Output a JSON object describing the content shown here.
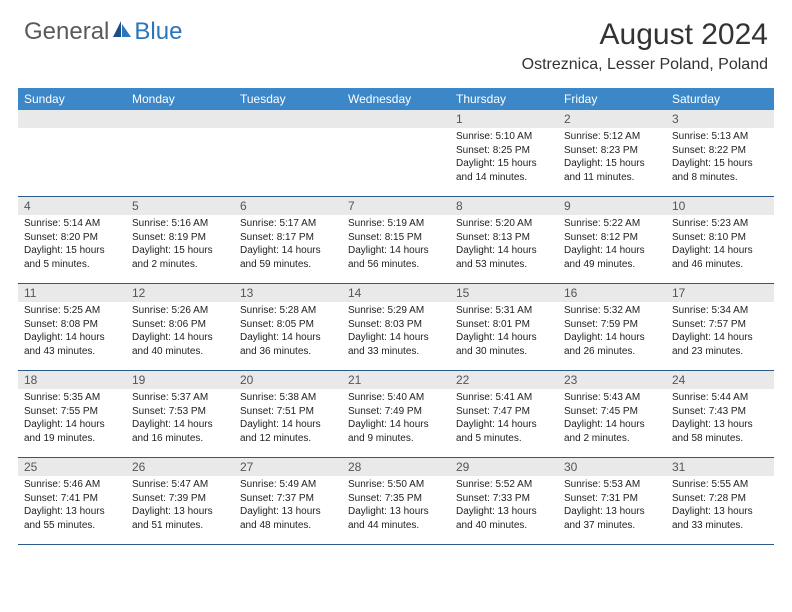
{
  "brand": {
    "part1": "General",
    "part2": "Blue"
  },
  "title": "August 2024",
  "location": "Ostreznica, Lesser Poland, Poland",
  "colors": {
    "header_bg": "#3b87c8",
    "header_text": "#ffffff",
    "daynum_bg": "#e9e9e9",
    "row_border": "#2a5a8a",
    "accent": "#2a75bb"
  },
  "day_labels": [
    "Sunday",
    "Monday",
    "Tuesday",
    "Wednesday",
    "Thursday",
    "Friday",
    "Saturday"
  ],
  "weeks": [
    [
      {
        "n": "",
        "sr": "",
        "ss": "",
        "dl": ""
      },
      {
        "n": "",
        "sr": "",
        "ss": "",
        "dl": ""
      },
      {
        "n": "",
        "sr": "",
        "ss": "",
        "dl": ""
      },
      {
        "n": "",
        "sr": "",
        "ss": "",
        "dl": ""
      },
      {
        "n": "1",
        "sr": "Sunrise: 5:10 AM",
        "ss": "Sunset: 8:25 PM",
        "dl": "Daylight: 15 hours and 14 minutes."
      },
      {
        "n": "2",
        "sr": "Sunrise: 5:12 AM",
        "ss": "Sunset: 8:23 PM",
        "dl": "Daylight: 15 hours and 11 minutes."
      },
      {
        "n": "3",
        "sr": "Sunrise: 5:13 AM",
        "ss": "Sunset: 8:22 PM",
        "dl": "Daylight: 15 hours and 8 minutes."
      }
    ],
    [
      {
        "n": "4",
        "sr": "Sunrise: 5:14 AM",
        "ss": "Sunset: 8:20 PM",
        "dl": "Daylight: 15 hours and 5 minutes."
      },
      {
        "n": "5",
        "sr": "Sunrise: 5:16 AM",
        "ss": "Sunset: 8:19 PM",
        "dl": "Daylight: 15 hours and 2 minutes."
      },
      {
        "n": "6",
        "sr": "Sunrise: 5:17 AM",
        "ss": "Sunset: 8:17 PM",
        "dl": "Daylight: 14 hours and 59 minutes."
      },
      {
        "n": "7",
        "sr": "Sunrise: 5:19 AM",
        "ss": "Sunset: 8:15 PM",
        "dl": "Daylight: 14 hours and 56 minutes."
      },
      {
        "n": "8",
        "sr": "Sunrise: 5:20 AM",
        "ss": "Sunset: 8:13 PM",
        "dl": "Daylight: 14 hours and 53 minutes."
      },
      {
        "n": "9",
        "sr": "Sunrise: 5:22 AM",
        "ss": "Sunset: 8:12 PM",
        "dl": "Daylight: 14 hours and 49 minutes."
      },
      {
        "n": "10",
        "sr": "Sunrise: 5:23 AM",
        "ss": "Sunset: 8:10 PM",
        "dl": "Daylight: 14 hours and 46 minutes."
      }
    ],
    [
      {
        "n": "11",
        "sr": "Sunrise: 5:25 AM",
        "ss": "Sunset: 8:08 PM",
        "dl": "Daylight: 14 hours and 43 minutes."
      },
      {
        "n": "12",
        "sr": "Sunrise: 5:26 AM",
        "ss": "Sunset: 8:06 PM",
        "dl": "Daylight: 14 hours and 40 minutes."
      },
      {
        "n": "13",
        "sr": "Sunrise: 5:28 AM",
        "ss": "Sunset: 8:05 PM",
        "dl": "Daylight: 14 hours and 36 minutes."
      },
      {
        "n": "14",
        "sr": "Sunrise: 5:29 AM",
        "ss": "Sunset: 8:03 PM",
        "dl": "Daylight: 14 hours and 33 minutes."
      },
      {
        "n": "15",
        "sr": "Sunrise: 5:31 AM",
        "ss": "Sunset: 8:01 PM",
        "dl": "Daylight: 14 hours and 30 minutes."
      },
      {
        "n": "16",
        "sr": "Sunrise: 5:32 AM",
        "ss": "Sunset: 7:59 PM",
        "dl": "Daylight: 14 hours and 26 minutes."
      },
      {
        "n": "17",
        "sr": "Sunrise: 5:34 AM",
        "ss": "Sunset: 7:57 PM",
        "dl": "Daylight: 14 hours and 23 minutes."
      }
    ],
    [
      {
        "n": "18",
        "sr": "Sunrise: 5:35 AM",
        "ss": "Sunset: 7:55 PM",
        "dl": "Daylight: 14 hours and 19 minutes."
      },
      {
        "n": "19",
        "sr": "Sunrise: 5:37 AM",
        "ss": "Sunset: 7:53 PM",
        "dl": "Daylight: 14 hours and 16 minutes."
      },
      {
        "n": "20",
        "sr": "Sunrise: 5:38 AM",
        "ss": "Sunset: 7:51 PM",
        "dl": "Daylight: 14 hours and 12 minutes."
      },
      {
        "n": "21",
        "sr": "Sunrise: 5:40 AM",
        "ss": "Sunset: 7:49 PM",
        "dl": "Daylight: 14 hours and 9 minutes."
      },
      {
        "n": "22",
        "sr": "Sunrise: 5:41 AM",
        "ss": "Sunset: 7:47 PM",
        "dl": "Daylight: 14 hours and 5 minutes."
      },
      {
        "n": "23",
        "sr": "Sunrise: 5:43 AM",
        "ss": "Sunset: 7:45 PM",
        "dl": "Daylight: 14 hours and 2 minutes."
      },
      {
        "n": "24",
        "sr": "Sunrise: 5:44 AM",
        "ss": "Sunset: 7:43 PM",
        "dl": "Daylight: 13 hours and 58 minutes."
      }
    ],
    [
      {
        "n": "25",
        "sr": "Sunrise: 5:46 AM",
        "ss": "Sunset: 7:41 PM",
        "dl": "Daylight: 13 hours and 55 minutes."
      },
      {
        "n": "26",
        "sr": "Sunrise: 5:47 AM",
        "ss": "Sunset: 7:39 PM",
        "dl": "Daylight: 13 hours and 51 minutes."
      },
      {
        "n": "27",
        "sr": "Sunrise: 5:49 AM",
        "ss": "Sunset: 7:37 PM",
        "dl": "Daylight: 13 hours and 48 minutes."
      },
      {
        "n": "28",
        "sr": "Sunrise: 5:50 AM",
        "ss": "Sunset: 7:35 PM",
        "dl": "Daylight: 13 hours and 44 minutes."
      },
      {
        "n": "29",
        "sr": "Sunrise: 5:52 AM",
        "ss": "Sunset: 7:33 PM",
        "dl": "Daylight: 13 hours and 40 minutes."
      },
      {
        "n": "30",
        "sr": "Sunrise: 5:53 AM",
        "ss": "Sunset: 7:31 PM",
        "dl": "Daylight: 13 hours and 37 minutes."
      },
      {
        "n": "31",
        "sr": "Sunrise: 5:55 AM",
        "ss": "Sunset: 7:28 PM",
        "dl": "Daylight: 13 hours and 33 minutes."
      }
    ]
  ]
}
